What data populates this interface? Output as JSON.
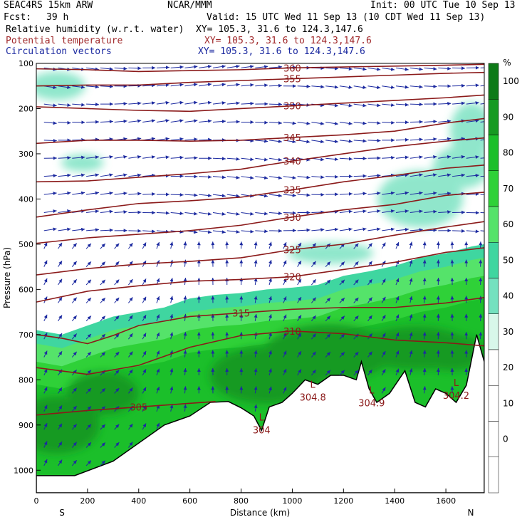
{
  "header": {
    "model": "SEAC4RS 15km ARW",
    "org": "NCAR/MMM",
    "init": "Init: 00 UTC Tue 10 Sep 13",
    "fcst_label": "Fcst:",
    "fcst_value": "39 h",
    "valid": "Valid: 15 UTC Wed 11 Sep 13 (10 CDT Wed 11 Sep 13)",
    "fields": [
      {
        "name": "Relative humidity (w.r.t. water)",
        "xy": "XY= 105.3, 31.6 to 124.3,147.6",
        "color": "#000000"
      },
      {
        "name": "Potential temperature",
        "xy": "XY= 105.3, 31.6 to 124.3,147.6",
        "color": "#a0282a"
      },
      {
        "name": "Circulation vectors",
        "xy": "XY= 105.3, 31.6 to 124.3,147.6",
        "color": "#1c2aa0"
      }
    ]
  },
  "chart_data": {
    "type": "heatmap",
    "xlabel": "Distance (km)",
    "ylabel": "Pressure (hPa)",
    "xlim": [
      0,
      1750
    ],
    "ylim": [
      1050,
      100
    ],
    "x_ticks": [
      0,
      200,
      400,
      600,
      800,
      1000,
      1200,
      1400,
      1600
    ],
    "y_ticks": [
      100,
      200,
      300,
      400,
      500,
      600,
      700,
      800,
      900,
      1000
    ],
    "end_labels": {
      "left": "S",
      "right": "N"
    },
    "colorbar": {
      "unit": "%",
      "ticks": [
        0,
        10,
        20,
        30,
        40,
        50,
        60,
        70,
        80,
        90,
        100
      ],
      "levels": [
        {
          "min": -10,
          "max": 0,
          "color": "#ffffff"
        },
        {
          "min": 0,
          "max": 10,
          "color": "#ffffff"
        },
        {
          "min": 10,
          "max": 20,
          "color": "#ffffff"
        },
        {
          "min": 20,
          "max": 30,
          "color": "#ffffff"
        },
        {
          "min": 30,
          "max": 40,
          "color": "#d8f7ea"
        },
        {
          "min": 40,
          "max": 50,
          "color": "#74e1bf"
        },
        {
          "min": 50,
          "max": 60,
          "color": "#3fd6a0"
        },
        {
          "min": 60,
          "max": 70,
          "color": "#55e36a"
        },
        {
          "min": 70,
          "max": 80,
          "color": "#2fd138"
        },
        {
          "min": 80,
          "max": 90,
          "color": "#1bbf2a"
        },
        {
          "min": 90,
          "max": 100,
          "color": "#169a22"
        },
        {
          "min": 100,
          "max": 110,
          "color": "#0d7a18"
        }
      ]
    },
    "theta_contours": [
      {
        "label": "305",
        "points": [
          [
            0,
            878
          ],
          [
            200,
            868
          ],
          [
            400,
            860
          ],
          [
            600,
            852
          ],
          [
            700,
            848
          ]
        ]
      },
      {
        "label": "310",
        "points": [
          [
            0,
            773
          ],
          [
            200,
            788
          ],
          [
            400,
            768
          ],
          [
            600,
            728
          ],
          [
            800,
            702
          ],
          [
            1000,
            692
          ],
          [
            1200,
            698
          ],
          [
            1400,
            712
          ],
          [
            1600,
            718
          ],
          [
            1750,
            725
          ]
        ]
      },
      {
        "label": "315",
        "points": [
          [
            0,
            700
          ],
          [
            100,
            708
          ],
          [
            200,
            720
          ],
          [
            300,
            702
          ],
          [
            400,
            680
          ],
          [
            600,
            660
          ],
          [
            800,
            652
          ],
          [
            1000,
            644
          ],
          [
            1200,
            640
          ],
          [
            1400,
            640
          ],
          [
            1600,
            630
          ],
          [
            1750,
            618
          ]
        ]
      },
      {
        "label": "320",
        "points": [
          [
            0,
            628
          ],
          [
            200,
            604
          ],
          [
            400,
            592
          ],
          [
            600,
            582
          ],
          [
            800,
            578
          ],
          [
            1000,
            572
          ],
          [
            1200,
            556
          ],
          [
            1400,
            540
          ],
          [
            1600,
            518
          ],
          [
            1750,
            508
          ]
        ]
      },
      {
        "label": "325",
        "points": [
          [
            0,
            568
          ],
          [
            200,
            554
          ],
          [
            400,
            544
          ],
          [
            600,
            538
          ],
          [
            800,
            530
          ],
          [
            1000,
            512
          ],
          [
            1200,
            500
          ],
          [
            1400,
            480
          ],
          [
            1600,
            462
          ],
          [
            1750,
            450
          ]
        ]
      },
      {
        "label": "330",
        "points": [
          [
            0,
            498
          ],
          [
            200,
            486
          ],
          [
            400,
            478
          ],
          [
            600,
            470
          ],
          [
            800,
            458
          ],
          [
            1000,
            440
          ],
          [
            1200,
            424
          ],
          [
            1400,
            412
          ],
          [
            1600,
            392
          ],
          [
            1750,
            385
          ]
        ]
      },
      {
        "label": "335",
        "points": [
          [
            0,
            440
          ],
          [
            200,
            424
          ],
          [
            400,
            410
          ],
          [
            600,
            404
          ],
          [
            800,
            396
          ],
          [
            1000,
            380
          ],
          [
            1200,
            362
          ],
          [
            1400,
            348
          ],
          [
            1600,
            332
          ],
          [
            1750,
            325
          ]
        ]
      },
      {
        "label": "340",
        "points": [
          [
            0,
            362
          ],
          [
            200,
            360
          ],
          [
            400,
            352
          ],
          [
            600,
            344
          ],
          [
            800,
            334
          ],
          [
            1000,
            316
          ],
          [
            1200,
            300
          ],
          [
            1400,
            284
          ],
          [
            1600,
            272
          ],
          [
            1750,
            265
          ]
        ]
      },
      {
        "label": "345",
        "points": [
          [
            0,
            277
          ],
          [
            200,
            270
          ],
          [
            400,
            270
          ],
          [
            600,
            272
          ],
          [
            800,
            270
          ],
          [
            1000,
            264
          ],
          [
            1200,
            258
          ],
          [
            1400,
            250
          ],
          [
            1600,
            232
          ],
          [
            1750,
            222
          ]
        ]
      },
      {
        "label": "350",
        "points": [
          [
            0,
            196
          ],
          [
            200,
            200
          ],
          [
            400,
            204
          ],
          [
            600,
            206
          ],
          [
            800,
            200
          ],
          [
            1000,
            194
          ],
          [
            1200,
            188
          ],
          [
            1400,
            182
          ],
          [
            1600,
            176
          ],
          [
            1750,
            170
          ]
        ]
      },
      {
        "label": "355",
        "points": [
          [
            0,
            150
          ],
          [
            200,
            148
          ],
          [
            400,
            148
          ],
          [
            600,
            142
          ],
          [
            800,
            138
          ],
          [
            1000,
            134
          ],
          [
            1200,
            130
          ],
          [
            1400,
            126
          ],
          [
            1600,
            122
          ],
          [
            1750,
            120
          ]
        ]
      },
      {
        "label": "360",
        "points": [
          [
            0,
            112
          ],
          [
            200,
            114
          ],
          [
            400,
            118
          ],
          [
            600,
            116
          ],
          [
            800,
            114
          ],
          [
            1000,
            110
          ],
          [
            1200,
            108
          ],
          [
            1400,
            106
          ],
          [
            1600,
            104
          ],
          [
            1750,
            102
          ]
        ]
      }
    ],
    "minima": [
      {
        "x": 880,
        "p": 912,
        "label": "304"
      },
      {
        "x": 1080,
        "p": 840,
        "label": "304.8"
      },
      {
        "x": 1310,
        "p": 852,
        "label": "304.9"
      },
      {
        "x": 1640,
        "p": 836,
        "label": "304.2"
      }
    ],
    "terrain": [
      [
        0,
        1012
      ],
      [
        150,
        1012
      ],
      [
        300,
        980
      ],
      [
        400,
        940
      ],
      [
        500,
        900
      ],
      [
        600,
        880
      ],
      [
        680,
        850
      ],
      [
        750,
        848
      ],
      [
        800,
        862
      ],
      [
        850,
        880
      ],
      [
        880,
        912
      ],
      [
        910,
        860
      ],
      [
        960,
        850
      ],
      [
        1000,
        830
      ],
      [
        1050,
        800
      ],
      [
        1100,
        810
      ],
      [
        1150,
        790
      ],
      [
        1200,
        790
      ],
      [
        1250,
        800
      ],
      [
        1270,
        760
      ],
      [
        1300,
        820
      ],
      [
        1330,
        850
      ],
      [
        1380,
        830
      ],
      [
        1440,
        780
      ],
      [
        1480,
        850
      ],
      [
        1520,
        860
      ],
      [
        1560,
        820
      ],
      [
        1600,
        830
      ],
      [
        1640,
        850
      ],
      [
        1680,
        812
      ],
      [
        1720,
        700
      ],
      [
        1750,
        760
      ]
    ]
  }
}
